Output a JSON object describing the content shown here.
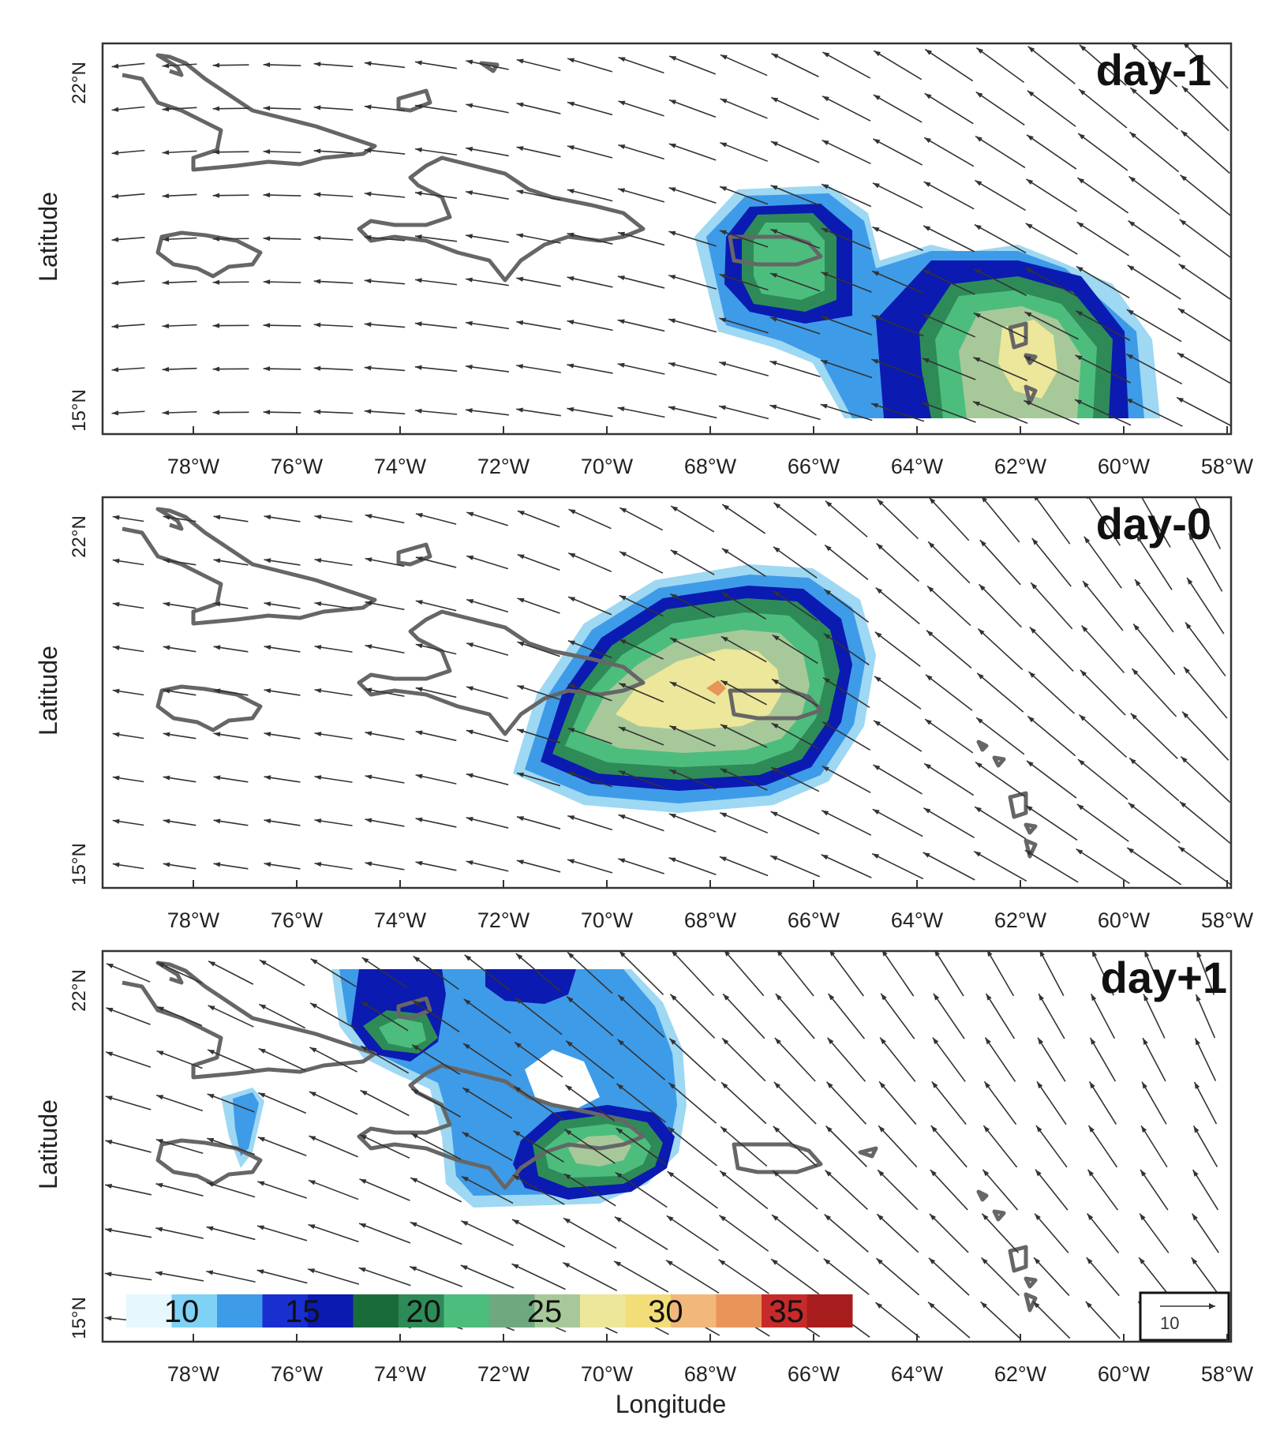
{
  "figure": {
    "panels": [
      {
        "label": "day-1",
        "lat_ticks": [
          "22°N",
          "15°N"
        ],
        "lon_ticks": [
          "78°W",
          "76°W",
          "74°W",
          "72°W",
          "70°W",
          "68°W",
          "66°W",
          "64°W",
          "62°W",
          "60°W",
          "58°W"
        ],
        "ylabel": "Latitude"
      },
      {
        "label": "day-0",
        "lat_ticks": [
          "22°N",
          "15°N"
        ],
        "lon_ticks": [
          "78°W",
          "76°W",
          "74°W",
          "72°W",
          "70°W",
          "68°W",
          "66°W",
          "64°W",
          "62°W",
          "60°W",
          "58°W"
        ],
        "ylabel": "Latitude"
      },
      {
        "label": "day+1",
        "lat_ticks": [
          "22°N",
          "15°N"
        ],
        "lon_ticks": [
          "78°W",
          "76°W",
          "74°W",
          "72°W",
          "70°W",
          "68°W",
          "66°W",
          "64°W",
          "62°W",
          "60°W",
          "58°W"
        ],
        "ylabel": "Latitude"
      }
    ],
    "xlabel": "Longitude",
    "colorbar": {
      "labels": [
        "10",
        "15",
        "20",
        "25",
        "30",
        "35"
      ],
      "colors": [
        "#e6f7fd",
        "#7fd2f5",
        "#3e9be8",
        "#1a2fd0",
        "#0b1ab0",
        "#1a6b3a",
        "#2e8b57",
        "#4dbd7d",
        "#6fa87f",
        "#a7c99a",
        "#ece79a",
        "#f3dd78",
        "#f2b77a",
        "#e9955a",
        "#c72a2a",
        "#a71d1d"
      ]
    },
    "reference_vector": {
      "label": "10"
    }
  }
}
